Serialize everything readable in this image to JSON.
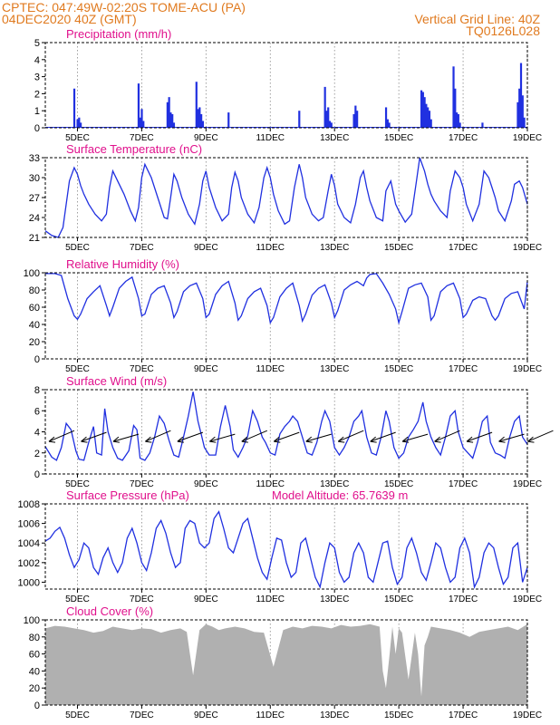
{
  "header": {
    "line1_left": "CPTEC:  047:49W-02:20S  TOME-ACU (PA)",
    "line2_left": "04DEC2020 40Z (GMT)",
    "line1_right": "Vertical Grid Line: 40Z",
    "line2_right": "TQ0126L028"
  },
  "colors": {
    "header": "#e07a1f",
    "title": "#e0108c",
    "line": "#2030e0",
    "bar": "#2030e0",
    "cloud": "#b0b0b0",
    "grid": "#888888"
  },
  "x_ticks": [
    "5DEC",
    "7DEC",
    "9DEC",
    "11DEC",
    "13DEC",
    "15DEC",
    "17DEC",
    "19DEC"
  ],
  "chart_data": [
    {
      "type": "bar",
      "title": "Precipitation (mm/h)",
      "ylim": [
        0,
        5
      ],
      "yticks": [
        0,
        1,
        2,
        3,
        4,
        5
      ],
      "x": [
        4.9,
        5.0,
        5.05,
        5.1,
        6.9,
        6.95,
        7.0,
        7.05,
        7.8,
        7.85,
        7.9,
        7.95,
        8.0,
        8.7,
        8.75,
        8.8,
        8.85,
        8.9,
        9.7,
        11.9,
        12.7,
        12.75,
        12.8,
        12.85,
        12.9,
        13.6,
        13.65,
        13.7,
        14.6,
        14.65,
        14.7,
        15.7,
        15.75,
        15.8,
        15.85,
        15.9,
        15.95,
        16.0,
        16.7,
        16.75,
        16.8,
        16.85,
        16.9,
        17.6,
        18.7,
        18.75,
        18.8,
        18.85,
        18.9
      ],
      "values": [
        2.3,
        0.5,
        0.6,
        0.3,
        2.6,
        0.6,
        1.1,
        0.4,
        1.5,
        1.8,
        0.9,
        0.8,
        0.3,
        2.7,
        1.1,
        1.2,
        0.8,
        0.4,
        0.9,
        1.0,
        2.4,
        1.0,
        1.2,
        0.4,
        0.3,
        0.8,
        1.3,
        1.0,
        1.2,
        0.5,
        0.3,
        2.2,
        2.1,
        1.8,
        1.4,
        1.2,
        1.0,
        0.5,
        3.6,
        2.3,
        0.9,
        0.8,
        0.3,
        0.3,
        1.5,
        2.3,
        3.8,
        1.9,
        0.6
      ]
    },
    {
      "type": "line",
      "title": "Surface Temperature (nC)",
      "ylim": [
        21,
        33
      ],
      "yticks": [
        21,
        24,
        27,
        30,
        33
      ],
      "x": [
        4.0,
        4.2,
        4.4,
        4.55,
        4.75,
        4.9,
        5.0,
        5.1,
        5.2,
        5.35,
        5.55,
        5.75,
        5.9,
        6.0,
        6.1,
        6.25,
        6.45,
        6.65,
        6.8,
        6.9,
        7.0,
        7.1,
        7.3,
        7.5,
        7.7,
        7.8,
        7.9,
        8.0,
        8.1,
        8.25,
        8.45,
        8.65,
        8.8,
        8.9,
        9.0,
        9.1,
        9.3,
        9.5,
        9.7,
        9.8,
        9.9,
        10.0,
        10.1,
        10.3,
        10.5,
        10.65,
        10.8,
        10.9,
        11.0,
        11.1,
        11.25,
        11.45,
        11.6,
        11.75,
        11.9,
        12.0,
        12.1,
        12.3,
        12.5,
        12.65,
        12.8,
        12.9,
        13.0,
        13.1,
        13.3,
        13.5,
        13.65,
        13.8,
        13.9,
        14.0,
        14.1,
        14.3,
        14.5,
        14.6,
        14.75,
        14.9,
        15.0,
        15.2,
        15.4,
        15.55,
        15.65,
        15.8,
        15.9,
        16.0,
        16.1,
        16.3,
        16.5,
        16.6,
        16.75,
        16.9,
        17.0,
        17.1,
        17.3,
        17.5,
        17.65,
        17.8,
        17.9,
        18.0,
        18.1,
        18.3,
        18.5,
        18.6,
        18.75,
        18.85,
        19.0
      ],
      "values": [
        22.0,
        21.3,
        21.0,
        22.5,
        29.5,
        31.5,
        30.5,
        28.8,
        27.5,
        26.0,
        24.5,
        23.5,
        24.5,
        28.5,
        31.0,
        29.5,
        27.5,
        25.0,
        23.5,
        25.5,
        30.0,
        32.0,
        30.0,
        27.0,
        24.0,
        23.8,
        27.0,
        30.5,
        29.5,
        27.0,
        24.5,
        23.0,
        26.0,
        29.5,
        31.0,
        28.5,
        25.5,
        23.5,
        24.5,
        28.5,
        30.8,
        29.5,
        27.0,
        24.5,
        23.2,
        25.5,
        30.0,
        31.5,
        30.0,
        27.5,
        25.0,
        23.0,
        23.5,
        28.5,
        32.0,
        30.0,
        27.0,
        24.5,
        23.5,
        24.0,
        28.0,
        30.5,
        28.8,
        26.0,
        24.0,
        23.2,
        26.0,
        30.0,
        31.0,
        28.5,
        26.5,
        24.0,
        23.5,
        28.0,
        29.5,
        26.0,
        25.0,
        23.3,
        24.5,
        29.5,
        33.0,
        31.0,
        29.0,
        27.5,
        26.5,
        25.0,
        24.0,
        28.0,
        31.0,
        30.0,
        28.5,
        26.0,
        23.5,
        26.0,
        31.0,
        30.0,
        28.5,
        27.0,
        25.0,
        23.5,
        26.5,
        29.0,
        29.5,
        28.5,
        26.0
      ]
    },
    {
      "type": "line",
      "title": "Relative Humidity (%)",
      "ylim": [
        0,
        100
      ],
      "yticks": [
        0,
        20,
        40,
        60,
        80,
        100
      ],
      "x": [
        4.0,
        4.3,
        4.5,
        4.7,
        4.9,
        5.0,
        5.1,
        5.3,
        5.5,
        5.7,
        5.9,
        6.0,
        6.1,
        6.3,
        6.5,
        6.7,
        6.9,
        7.0,
        7.1,
        7.3,
        7.5,
        7.7,
        7.9,
        8.0,
        8.1,
        8.3,
        8.5,
        8.7,
        8.9,
        9.0,
        9.1,
        9.3,
        9.5,
        9.7,
        9.9,
        10.0,
        10.1,
        10.3,
        10.5,
        10.7,
        10.9,
        11.0,
        11.1,
        11.3,
        11.5,
        11.7,
        11.9,
        12.0,
        12.1,
        12.3,
        12.5,
        12.7,
        12.9,
        13.0,
        13.1,
        13.3,
        13.5,
        13.7,
        13.9,
        14.0,
        14.1,
        14.3,
        14.5,
        14.7,
        14.9,
        15.0,
        15.1,
        15.3,
        15.5,
        15.7,
        15.9,
        16.0,
        16.1,
        16.3,
        16.5,
        16.7,
        16.9,
        17.0,
        17.1,
        17.3,
        17.5,
        17.7,
        17.9,
        18.0,
        18.1,
        18.3,
        18.5,
        18.7,
        18.9,
        19.0
      ],
      "values": [
        99,
        99,
        97,
        70,
        50,
        46,
        52,
        70,
        78,
        85,
        62,
        50,
        60,
        82,
        90,
        95,
        70,
        50,
        52,
        75,
        82,
        85,
        65,
        48,
        55,
        78,
        85,
        88,
        70,
        48,
        52,
        75,
        85,
        90,
        65,
        45,
        50,
        70,
        78,
        82,
        62,
        42,
        48,
        72,
        82,
        88,
        62,
        44,
        52,
        74,
        82,
        86,
        65,
        48,
        56,
        80,
        86,
        90,
        85,
        94,
        98,
        99,
        88,
        75,
        58,
        42,
        55,
        82,
        86,
        88,
        72,
        45,
        50,
        78,
        85,
        88,
        70,
        48,
        52,
        68,
        72,
        70,
        50,
        45,
        50,
        70,
        76,
        78,
        58,
        90
      ]
    },
    {
      "type": "line",
      "title": "Surface Wind (m/s)",
      "ylim": [
        0,
        8
      ],
      "yticks": [
        0,
        2,
        4,
        6,
        8
      ],
      "x": [
        4.0,
        4.2,
        4.35,
        4.5,
        4.65,
        4.8,
        4.95,
        5.05,
        5.2,
        5.35,
        5.5,
        5.6,
        5.75,
        5.85,
        5.95,
        6.1,
        6.25,
        6.4,
        6.6,
        6.75,
        6.85,
        6.95,
        7.1,
        7.25,
        7.4,
        7.55,
        7.7,
        7.85,
        8.0,
        8.15,
        8.3,
        8.45,
        8.6,
        8.75,
        8.85,
        8.95,
        9.1,
        9.3,
        9.45,
        9.6,
        9.75,
        9.85,
        10.0,
        10.15,
        10.3,
        10.45,
        10.6,
        10.75,
        10.85,
        11.0,
        11.15,
        11.3,
        11.45,
        11.6,
        11.7,
        11.85,
        12.0,
        12.15,
        12.3,
        12.45,
        12.6,
        12.7,
        12.85,
        13.0,
        13.15,
        13.3,
        13.45,
        13.6,
        13.75,
        13.85,
        14.0,
        14.15,
        14.3,
        14.45,
        14.6,
        14.7,
        14.85,
        15.0,
        15.15,
        15.3,
        15.45,
        15.6,
        15.75,
        15.85,
        16.0,
        16.15,
        16.3,
        16.45,
        16.6,
        16.75,
        16.85,
        17.0,
        17.15,
        17.3,
        17.45,
        17.6,
        17.75,
        17.85,
        18.0,
        18.15,
        18.3,
        18.45,
        18.6,
        18.75,
        18.85,
        19.0
      ],
      "values": [
        2.6,
        1.6,
        1.3,
        2.5,
        4.8,
        4.2,
        2.2,
        1.4,
        1.3,
        3.0,
        4.5,
        2.0,
        1.8,
        6.2,
        4.0,
        2.5,
        1.5,
        1.3,
        2.2,
        4.6,
        4.2,
        1.5,
        1.3,
        2.0,
        3.5,
        5.5,
        4.8,
        3.2,
        1.8,
        1.6,
        3.5,
        5.5,
        7.8,
        5.0,
        3.8,
        2.5,
        1.8,
        1.8,
        4.5,
        6.5,
        4.5,
        2.3,
        1.6,
        2.5,
        3.6,
        6.0,
        5.0,
        3.5,
        3.0,
        2.0,
        1.8,
        3.8,
        4.5,
        5.0,
        5.5,
        5.0,
        3.5,
        2.0,
        1.8,
        3.0,
        5.0,
        6.0,
        5.0,
        2.5,
        1.8,
        2.5,
        3.5,
        5.0,
        5.5,
        6.0,
        3.5,
        2.0,
        1.8,
        3.5,
        6.0,
        5.0,
        2.5,
        1.5,
        2.0,
        3.5,
        4.2,
        5.0,
        6.8,
        5.0,
        3.5,
        2.5,
        1.8,
        3.5,
        5.5,
        6.0,
        4.0,
        2.5,
        2.0,
        1.5,
        3.0,
        5.0,
        5.5,
        3.0,
        2.0,
        1.8,
        1.5,
        3.5,
        5.0,
        5.5,
        3.5,
        2.8
      ]
    },
    {
      "type": "line",
      "title": "Surface Pressure (hPa)",
      "annotation": "Model Altitude: 65.7639  m",
      "ylim": [
        999.3,
        1008
      ],
      "yticks": [
        1000,
        1002,
        1004,
        1006,
        1008
      ],
      "x": [
        4.0,
        4.15,
        4.3,
        4.45,
        4.6,
        4.75,
        4.9,
        5.05,
        5.2,
        5.35,
        5.5,
        5.65,
        5.8,
        5.95,
        6.1,
        6.25,
        6.4,
        6.55,
        6.7,
        6.85,
        7.0,
        7.15,
        7.3,
        7.45,
        7.6,
        7.75,
        7.9,
        8.05,
        8.2,
        8.35,
        8.5,
        8.65,
        8.8,
        8.95,
        9.1,
        9.25,
        9.4,
        9.55,
        9.7,
        9.85,
        10.0,
        10.15,
        10.3,
        10.45,
        10.6,
        10.75,
        10.9,
        11.05,
        11.2,
        11.35,
        11.5,
        11.65,
        11.8,
        11.95,
        12.1,
        12.25,
        12.4,
        12.55,
        12.7,
        12.85,
        13.0,
        13.15,
        13.3,
        13.45,
        13.6,
        13.75,
        13.9,
        14.05,
        14.2,
        14.35,
        14.5,
        14.65,
        14.8,
        14.95,
        15.1,
        15.25,
        15.4,
        15.55,
        15.7,
        15.85,
        16.0,
        16.15,
        16.3,
        16.45,
        16.6,
        16.75,
        16.9,
        17.05,
        17.2,
        17.35,
        17.5,
        17.65,
        17.8,
        17.95,
        18.1,
        18.25,
        18.4,
        18.55,
        18.7,
        18.85,
        19.0
      ],
      "values": [
        1004.2,
        1004.5,
        1005.2,
        1005.6,
        1004.5,
        1002.8,
        1001.5,
        1002.3,
        1004.0,
        1003.5,
        1001.5,
        1000.8,
        1002.5,
        1003.5,
        1002.0,
        1001.0,
        1002.0,
        1004.5,
        1005.5,
        1004.0,
        1002.0,
        1001.2,
        1003.0,
        1005.5,
        1006.3,
        1005.0,
        1003.0,
        1001.5,
        1002.0,
        1005.5,
        1006.3,
        1006.0,
        1004.0,
        1003.5,
        1004.0,
        1006.5,
        1007.2,
        1005.5,
        1003.5,
        1003.0,
        1004.5,
        1006.0,
        1006.5,
        1004.5,
        1002.5,
        1001.0,
        1000.3,
        1002.5,
        1004.5,
        1004.3,
        1002.0,
        1000.5,
        1001.0,
        1004.0,
        1004.5,
        1002.5,
        1000.5,
        999.5,
        1002.0,
        1004.0,
        1003.5,
        1001.0,
        1000.0,
        1000.5,
        1003.0,
        1004.0,
        1003.0,
        1000.5,
        1000.0,
        1002.0,
        1004.0,
        1004.2,
        1001.5,
        999.8,
        1000.5,
        1003.5,
        1004.5,
        1003.0,
        1001.0,
        1000.2,
        1002.0,
        1004.0,
        1003.5,
        1001.5,
        1000.0,
        1000.5,
        1003.5,
        1004.5,
        1003.0,
        999.5,
        1000.5,
        1003.0,
        1004.0,
        1003.5,
        1001.5,
        999.8,
        1000.5,
        1003.5,
        1004.0,
        1000.0,
        1001.5
      ]
    },
    {
      "type": "area",
      "title": "Cloud Cover (%)",
      "ylim": [
        0,
        100
      ],
      "yticks": [
        0,
        20,
        40,
        60,
        80,
        100
      ],
      "x": [
        4.0,
        4.3,
        4.6,
        4.9,
        5.2,
        5.5,
        5.8,
        6.1,
        6.4,
        6.7,
        7.0,
        7.3,
        7.6,
        7.9,
        8.2,
        8.4,
        8.5,
        8.6,
        8.8,
        9.0,
        9.2,
        9.4,
        9.6,
        9.9,
        10.2,
        10.5,
        10.8,
        11.1,
        11.4,
        11.7,
        12.0,
        12.3,
        12.6,
        12.9,
        13.2,
        13.5,
        13.8,
        14.1,
        14.4,
        14.5,
        14.6,
        14.7,
        14.8,
        14.9,
        15.0,
        15.1,
        15.3,
        15.5,
        15.6,
        15.7,
        15.8,
        15.9,
        16.0,
        16.3,
        16.6,
        16.9,
        17.2,
        17.5,
        17.8,
        18.1,
        18.4,
        18.7,
        19.0
      ],
      "values": [
        90,
        93,
        92,
        90,
        88,
        85,
        87,
        92,
        90,
        88,
        90,
        89,
        85,
        88,
        90,
        86,
        60,
        35,
        88,
        95,
        92,
        88,
        90,
        92,
        90,
        86,
        85,
        45,
        88,
        92,
        90,
        93,
        92,
        90,
        94,
        92,
        93,
        95,
        92,
        40,
        20,
        55,
        92,
        60,
        90,
        85,
        30,
        85,
        60,
        10,
        70,
        80,
        92,
        90,
        88,
        85,
        80,
        86,
        88,
        90,
        92,
        88,
        95
      ]
    }
  ]
}
